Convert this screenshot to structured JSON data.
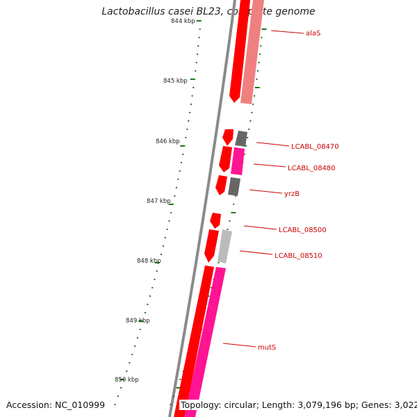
{
  "title": "Lactobacillus casei BL23, complete genome",
  "footer": {
    "accession": "Accession: NC_010999",
    "topology": "Topology: circular; Length: 3,079,196 bp; Genes: 3,022"
  },
  "ruler_labels": [
    "844 kbp",
    "845 kbp",
    "846 kbp",
    "847 kbp",
    "848 kbp",
    "849 kbp",
    "850 kbp"
  ],
  "gene_labels": [
    "alaS",
    "LCABL_08470",
    "LCABL_08480",
    "yrzB",
    "LCABL_08500",
    "LCABL_08510",
    "mutS"
  ],
  "colors": {
    "forward_strand": "#ff0000",
    "reverse_strand_alaS": "#f08080",
    "reverse_strand_magenta": "#ff1493",
    "reverse_strand_gray": "#666666",
    "reverse_strand_lightgray": "#bbbbbb",
    "backbone": "#777777",
    "tick": "#1a7a1a",
    "label": "#cc0000"
  }
}
